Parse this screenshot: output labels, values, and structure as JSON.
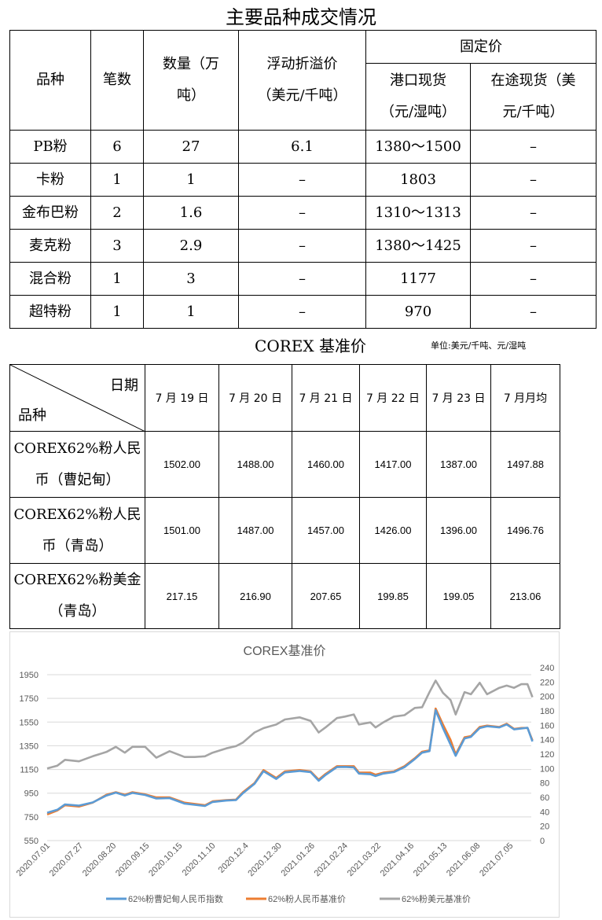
{
  "title": "主要品种成交情况",
  "trade_table": {
    "headers": {
      "variety": "品种",
      "count": "笔数",
      "quantity": "数量（万吨）",
      "float_premium": "浮动折溢价（美元/千吨）",
      "fixed_price": "固定价",
      "port_spot": "港口现货（元/湿吨）",
      "afloat_spot": "在途现货（美元/千吨）"
    },
    "rows": [
      {
        "variety": "PB粉",
        "count": "6",
        "quantity": "27",
        "float_premium": "6.1",
        "port_spot": "1380～1500",
        "afloat_spot": "–"
      },
      {
        "variety": "卡粉",
        "count": "1",
        "quantity": "1",
        "float_premium": "–",
        "port_spot": "1803",
        "afloat_spot": "–"
      },
      {
        "variety": "金布巴粉",
        "count": "2",
        "quantity": "1.6",
        "float_premium": "–",
        "port_spot": "1310～1313",
        "afloat_spot": "–"
      },
      {
        "variety": "麦克粉",
        "count": "3",
        "quantity": "2.9",
        "float_premium": "–",
        "port_spot": "1380～1425",
        "afloat_spot": "–"
      },
      {
        "variety": "混合粉",
        "count": "1",
        "quantity": "3",
        "float_premium": "–",
        "port_spot": "1177",
        "afloat_spot": "–"
      },
      {
        "variety": "超特粉",
        "count": "1",
        "quantity": "1",
        "float_premium": "–",
        "port_spot": "970",
        "afloat_spot": "–"
      }
    ]
  },
  "corex": {
    "title": "COREX 基准价",
    "unit": "单位:美元/千吨、元/湿吨",
    "header_date": "日期",
    "header_variety": "品种",
    "dates": [
      "7 月 19 日",
      "7 月 20 日",
      "7 月 21 日",
      "7 月 22 日",
      "7 月 23 日",
      "7 月月均"
    ],
    "rows": [
      {
        "name": "COREX62%粉人民币（曹妃甸）",
        "values": [
          "1502.00",
          "1488.00",
          "1460.00",
          "1417.00",
          "1387.00",
          "1497.88"
        ]
      },
      {
        "name": "COREX62%粉人民币（青岛）",
        "values": [
          "1501.00",
          "1487.00",
          "1457.00",
          "1426.00",
          "1396.00",
          "1496.76"
        ]
      },
      {
        "name": "COREX62%粉美金（青岛）",
        "values": [
          "217.15",
          "216.90",
          "207.65",
          "199.85",
          "199.05",
          "213.06"
        ]
      }
    ]
  },
  "chart_data": {
    "type": "line",
    "title": "COREX基准价",
    "grid": true,
    "legend": "bottom",
    "y_left": {
      "lim": [
        550,
        1950
      ],
      "ticks": [
        "1950",
        "1750",
        "1550",
        "1350",
        "1150",
        "950",
        "750",
        "550"
      ]
    },
    "y_right": {
      "lim": [
        0,
        240
      ],
      "ticks": [
        "240",
        "220",
        "200",
        "180",
        "160",
        "140",
        "120",
        "100",
        "80",
        "60",
        "40",
        "20",
        "0"
      ]
    },
    "x_ticks": [
      "2020.07.01",
      "2020.07.27",
      "2020.08.20",
      "2020.09.15",
      "2020.10.15",
      "2020.11.10",
      "2020.12.4",
      "2020.12.30",
      "2021.01.26",
      "2021.02.24",
      "2021.03.22",
      "2021.04.16",
      "2021.05.13",
      "2021.06.08",
      "2021.07.05"
    ],
    "x": [
      "2020-07-01",
      "2020-07-09",
      "2020-07-15",
      "2020-07-26",
      "2020-08-05",
      "2020-08-15",
      "2020-08-22",
      "2020-08-29",
      "2020-09-04",
      "2020-09-14",
      "2020-09-24",
      "2020-10-06",
      "2020-10-19",
      "2020-10-27",
      "2020-11-04",
      "2020-11-10",
      "2020-11-20",
      "2020-11-27",
      "2020-12-02",
      "2020-12-11",
      "2020-12-18",
      "2020-12-28",
      "2021-01-04",
      "2021-01-16",
      "2021-01-25",
      "2021-02-01",
      "2021-02-07",
      "2021-02-17",
      "2021-02-24",
      "2021-03-03",
      "2021-03-07",
      "2021-03-16",
      "2021-03-20",
      "2021-03-26",
      "2021-04-03",
      "2021-04-11",
      "2021-04-19",
      "2021-04-25",
      "2021-05-01",
      "2021-05-06",
      "2021-05-12",
      "2021-05-18",
      "2021-05-22",
      "2021-05-29",
      "2021-06-03",
      "2021-06-10",
      "2021-06-16",
      "2021-06-26",
      "2021-07-02",
      "2021-07-08",
      "2021-07-14",
      "2021-07-19",
      "2021-07-23"
    ],
    "series": [
      {
        "name": "62%粉曹妃甸人民币指数",
        "axis": "left",
        "color": "#5b9bd5",
        "values": [
          785,
          810,
          855,
          845,
          872,
          930,
          955,
          930,
          952,
          935,
          905,
          908,
          862,
          852,
          842,
          876,
          888,
          892,
          950,
          1030,
          1135,
          1070,
          1125,
          1138,
          1128,
          1055,
          1104,
          1170,
          1172,
          1168,
          1115,
          1110,
          1095,
          1115,
          1128,
          1170,
          1238,
          1292,
          1305,
          1650,
          1500,
          1360,
          1265,
          1412,
          1425,
          1500,
          1515,
          1505,
          1530,
          1488,
          1496,
          1502,
          1387
        ]
      },
      {
        "name": "62%粉人民币基准价",
        "axis": "left",
        "color": "#ed7d31",
        "values": [
          770,
          804,
          848,
          837,
          870,
          936,
          958,
          936,
          958,
          940,
          914,
          914,
          870,
          859,
          848,
          881,
          892,
          896,
          958,
          1035,
          1145,
          1079,
          1134,
          1145,
          1134,
          1064,
          1112,
          1178,
          1178,
          1178,
          1123,
          1123,
          1106,
          1123,
          1134,
          1178,
          1245,
          1300,
          1311,
          1664,
          1530,
          1399,
          1278,
          1421,
          1432,
          1509,
          1520,
          1509,
          1536,
          1492,
          1500,
          1501,
          1396
        ]
      },
      {
        "name": "62%粉美元基准价",
        "axis": "right",
        "color": "#a5a5a5",
        "values": [
          100,
          104,
          112,
          110,
          117,
          123,
          130,
          122,
          130,
          130,
          115,
          124,
          116,
          116,
          117,
          122,
          128,
          131,
          136,
          150,
          156,
          161,
          168,
          171,
          166,
          150,
          157,
          170,
          172,
          175,
          161,
          164,
          157,
          164,
          172,
          174,
          184,
          185,
          206,
          222,
          205,
          195,
          175,
          206,
          203,
          219,
          203,
          212,
          215,
          212,
          217,
          217,
          199
        ]
      }
    ]
  }
}
